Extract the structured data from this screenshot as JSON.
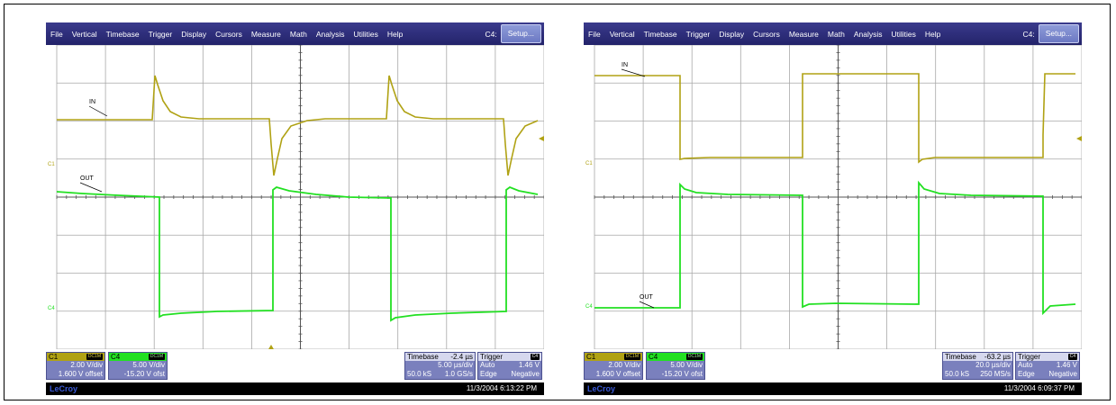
{
  "menu": [
    "File",
    "Vertical",
    "Timebase",
    "Trigger",
    "Display",
    "Cursors",
    "Measure",
    "Math",
    "Analysis",
    "Utilities",
    "Help"
  ],
  "colors": {
    "ch1": "#b0a214",
    "ch4": "#22e022",
    "grid_bg": "#ffffff",
    "grid_line": "#9a9a9a",
    "menubar": "#2c2c78"
  },
  "screens": [
    {
      "menu_channel": "C4:",
      "setup_label": "Setup...",
      "ch1_marker": "C1",
      "ch4_marker": "C4",
      "trace_in_label": "IN",
      "trace_out_label": "OUT",
      "ch1": {
        "name": "C1",
        "tag": "DC1M",
        "volts_div": "2.00 V/div",
        "offset": "1.600 V offset"
      },
      "ch4": {
        "name": "C4",
        "tag": "DC1M",
        "volts_div": "5.00 V/div",
        "offset": "-15.20 V ofst"
      },
      "timebase": {
        "label": "Timebase",
        "delay": "-2.4 µs",
        "time_div": "5.00 µs/div",
        "samples": "50.0 kS",
        "rate": "1.0 GS/s"
      },
      "trigger": {
        "label": "Trigger",
        "tag": "C4",
        "mode": "Auto",
        "level": "1.46 V",
        "type": "Edge",
        "slope": "Negative"
      },
      "brand": "LeCroy",
      "timestamp": "11/3/2004 6:13:22 PM"
    },
    {
      "menu_channel": "C4:",
      "setup_label": "Setup...",
      "ch1_marker": "C1",
      "ch4_marker": "C4",
      "trace_in_label": "IN",
      "trace_out_label": "OUT",
      "ch1": {
        "name": "C1",
        "tag": "DC1M",
        "volts_div": "2.00 V/div",
        "offset": "1.600 V offset"
      },
      "ch4": {
        "name": "C4",
        "tag": "DC1M",
        "volts_div": "5.00 V/div",
        "offset": "-15.20 V ofst"
      },
      "timebase": {
        "label": "Timebase",
        "delay": "-63.2 µs",
        "time_div": "20.0 µs/div",
        "samples": "50.0 kS",
        "rate": "250 MS/s"
      },
      "trigger": {
        "label": "Trigger",
        "tag": "C4",
        "mode": "Auto",
        "level": "1.46 V",
        "type": "Edge",
        "slope": "Negative"
      },
      "brand": "LeCroy",
      "timestamp": "11/3/2004 6:09:37 PM"
    }
  ]
}
